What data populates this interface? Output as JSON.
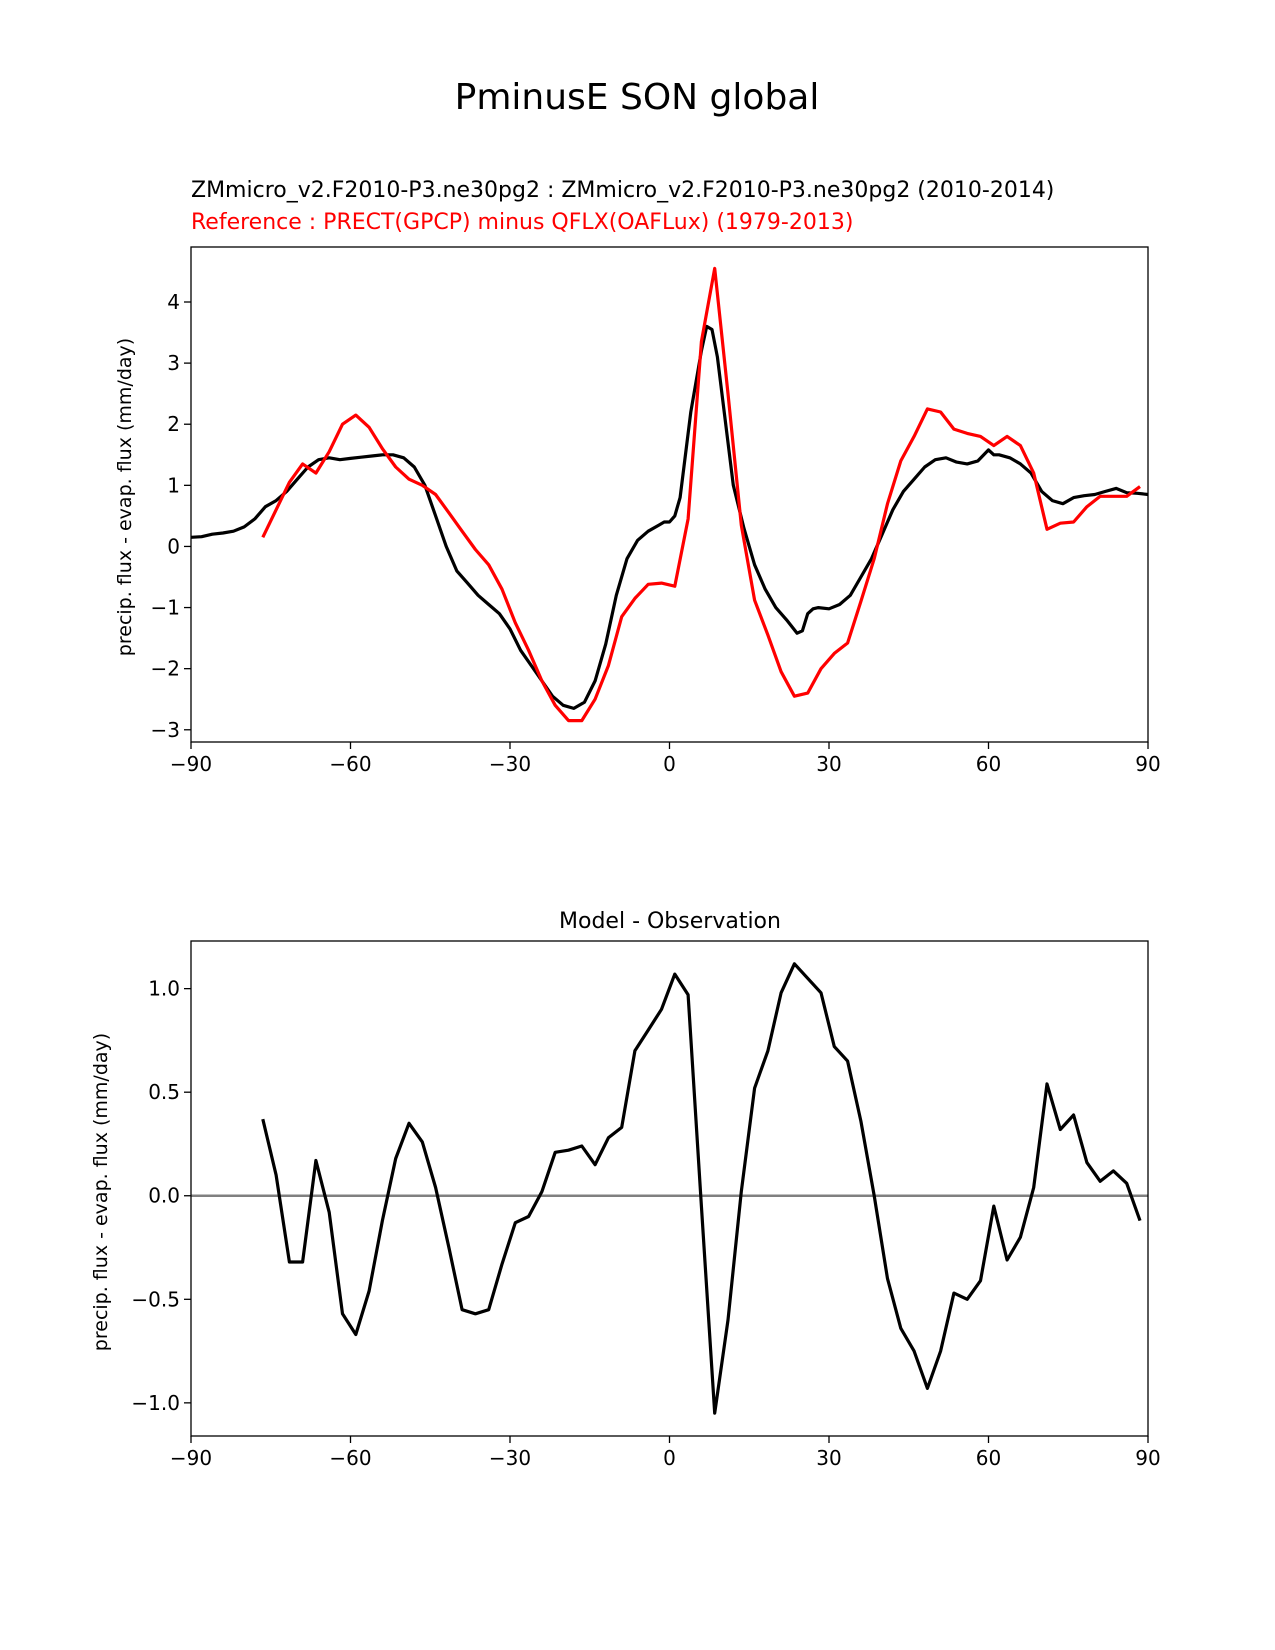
{
  "figure": {
    "suptitle": "PminusE SON global"
  },
  "chart_data": [
    {
      "type": "line",
      "title_test": "ZMmicro_v2.F2010-P3.ne30pg2 : ZMmicro_v2.F2010-P3.ne30pg2 (2010-2014)",
      "title_ref": "Reference : PRECT(GPCP) minus QFLX(OAFLux) (1979-2013)",
      "xlabel": "",
      "ylabel": "precip. flux - evap. flux (mm/day)",
      "xlim": [
        -90,
        90
      ],
      "ylim": [
        -3.2,
        4.9
      ],
      "xticks": [
        -90,
        -60,
        -30,
        0,
        30,
        60,
        90
      ],
      "xtick_labels": [
        "−90",
        "−60",
        "−30",
        "0",
        "30",
        "60",
        "90"
      ],
      "yticks": [
        -3,
        -2,
        -1,
        0,
        1,
        2,
        3,
        4
      ],
      "ytick_labels": [
        "−3",
        "−2",
        "−1",
        "0",
        "1",
        "2",
        "3",
        "4"
      ],
      "series": [
        {
          "name": "test",
          "color": "#000000",
          "x": [
            -90,
            -88,
            -86,
            -84,
            -82,
            -80,
            -78,
            -76,
            -74,
            -72,
            -70,
            -68,
            -66,
            -64,
            -62,
            -60,
            -58,
            -56,
            -54,
            -52,
            -50,
            -48,
            -46,
            -44,
            -42,
            -40,
            -38,
            -36,
            -34,
            -32,
            -30,
            -28,
            -26,
            -24,
            -22,
            -20,
            -18,
            -16,
            -14,
            -12,
            -10,
            -8,
            -6,
            -4,
            -2,
            -1,
            0,
            1,
            2,
            4,
            6,
            7,
            8,
            9,
            10,
            12,
            14,
            16,
            18,
            20,
            22,
            24,
            25,
            26,
            27,
            28,
            30,
            32,
            34,
            36,
            38,
            40,
            42,
            44,
            46,
            48,
            50,
            52,
            54,
            56,
            58,
            60,
            61,
            62,
            64,
            66,
            68,
            70,
            72,
            74,
            76,
            78,
            80,
            82,
            84,
            86,
            88,
            90
          ],
          "y": [
            0.15,
            0.16,
            0.2,
            0.22,
            0.25,
            0.32,
            0.45,
            0.65,
            0.75,
            0.9,
            1.1,
            1.3,
            1.42,
            1.45,
            1.42,
            1.44,
            1.46,
            1.48,
            1.5,
            1.5,
            1.45,
            1.3,
            1.0,
            0.5,
            0.0,
            -0.4,
            -0.6,
            -0.8,
            -0.95,
            -1.1,
            -1.35,
            -1.7,
            -1.95,
            -2.2,
            -2.45,
            -2.6,
            -2.65,
            -2.55,
            -2.2,
            -1.6,
            -0.8,
            -0.2,
            0.1,
            0.25,
            0.35,
            0.4,
            0.4,
            0.5,
            0.8,
            2.2,
            3.2,
            3.6,
            3.55,
            3.1,
            2.4,
            1.0,
            0.3,
            -0.3,
            -0.7,
            -1.0,
            -1.2,
            -1.42,
            -1.38,
            -1.1,
            -1.02,
            -1.0,
            -1.02,
            -0.95,
            -0.8,
            -0.5,
            -0.2,
            0.2,
            0.6,
            0.9,
            1.1,
            1.3,
            1.42,
            1.45,
            1.38,
            1.35,
            1.4,
            1.58,
            1.5,
            1.5,
            1.45,
            1.35,
            1.2,
            0.9,
            0.75,
            0.7,
            0.8,
            0.83,
            0.85,
            0.9,
            0.95,
            0.88,
            0.87,
            0.85
          ]
        },
        {
          "name": "reference",
          "color": "#ff0000",
          "x": [
            -76.5,
            -71.5,
            -69,
            -66.5,
            -64,
            -61.5,
            -59,
            -56.5,
            -54,
            -51.5,
            -49,
            -46.5,
            -44,
            -41.5,
            -39,
            -36.5,
            -34,
            -31.5,
            -29,
            -26.5,
            -24,
            -21.5,
            -19,
            -16.5,
            -14,
            -11.5,
            -9,
            -6.5,
            -4,
            -1.5,
            1,
            3.5,
            6,
            8.5,
            11,
            13.5,
            16,
            18.5,
            21,
            23.5,
            26,
            28.5,
            31,
            33.5,
            36,
            38.5,
            41,
            43.5,
            46,
            48.5,
            51,
            53.5,
            56,
            58.5,
            61,
            63.5,
            66,
            68.5,
            71,
            73.5,
            76,
            78.5,
            81,
            83.5,
            86,
            88.5
          ],
          "y": [
            0.15,
            1.05,
            1.35,
            1.2,
            1.55,
            2.0,
            2.15,
            1.95,
            1.6,
            1.3,
            1.1,
            1.0,
            0.85,
            0.55,
            0.25,
            -0.05,
            -0.3,
            -0.7,
            -1.25,
            -1.7,
            -2.2,
            -2.6,
            -2.85,
            -2.85,
            -2.5,
            -1.95,
            -1.15,
            -0.85,
            -0.62,
            -0.6,
            -0.65,
            0.45,
            3.35,
            4.55,
            2.5,
            0.35,
            -0.88,
            -1.45,
            -2.05,
            -2.45,
            -2.4,
            -2.0,
            -1.75,
            -1.58,
            -0.9,
            -0.2,
            0.7,
            1.4,
            1.8,
            2.25,
            2.2,
            1.92,
            1.85,
            1.8,
            1.65,
            1.8,
            1.65,
            1.2,
            0.28,
            0.38,
            0.4,
            0.65,
            0.82,
            0.82,
            0.82,
            0.98
          ]
        }
      ]
    },
    {
      "type": "line",
      "title": "Model - Observation",
      "xlabel": "",
      "ylabel": "precip. flux - evap. flux (mm/day)",
      "xlim": [
        -90,
        90
      ],
      "ylim": [
        -1.16,
        1.23
      ],
      "xticks": [
        -90,
        -60,
        -30,
        0,
        30,
        60,
        90
      ],
      "xtick_labels": [
        "−90",
        "−60",
        "−30",
        "0",
        "30",
        "60",
        "90"
      ],
      "yticks": [
        -1.0,
        -0.5,
        0.0,
        0.5,
        1.0
      ],
      "ytick_labels": [
        "−1.0",
        "−0.5",
        "0.0",
        "0.5",
        "1.0"
      ],
      "zero_line_color": "#808080",
      "series": [
        {
          "name": "difference",
          "color": "#000000",
          "x": [
            -76.5,
            -74,
            -71.5,
            -69,
            -66.5,
            -64,
            -61.5,
            -59,
            -56.5,
            -54,
            -51.5,
            -49,
            -46.5,
            -44,
            -41.5,
            -39,
            -36.5,
            -34,
            -31.5,
            -29,
            -26.5,
            -24,
            -21.5,
            -19,
            -16.5,
            -14,
            -11.5,
            -9,
            -6.5,
            -4,
            -1.5,
            1,
            3.5,
            6,
            8.5,
            11,
            13.5,
            16,
            18.5,
            21,
            23.5,
            26,
            28.5,
            31,
            33.5,
            36,
            38.5,
            41,
            43.5,
            46,
            48.5,
            51,
            53.5,
            56,
            58.5,
            61,
            63.5,
            66,
            68.5,
            71,
            73.5,
            76,
            78.5,
            81,
            83.5,
            86,
            88.5
          ],
          "y": [
            0.37,
            0.1,
            -0.32,
            -0.32,
            0.17,
            -0.08,
            -0.57,
            -0.67,
            -0.46,
            -0.12,
            0.18,
            0.35,
            0.26,
            0.04,
            -0.25,
            -0.55,
            -0.57,
            -0.55,
            -0.33,
            -0.13,
            -0.1,
            0.02,
            0.21,
            0.22,
            0.24,
            0.15,
            0.28,
            0.33,
            0.7,
            0.8,
            0.9,
            1.07,
            0.97,
            -0.05,
            -1.05,
            -0.6,
            0.02,
            0.52,
            0.7,
            0.98,
            1.12,
            1.05,
            0.98,
            0.72,
            0.65,
            0.36,
            0.0,
            -0.4,
            -0.64,
            -0.75,
            -0.93,
            -0.75,
            -0.47,
            -0.5,
            -0.41,
            -0.05,
            -0.31,
            -0.2,
            0.04,
            0.54,
            0.32,
            0.39,
            0.16,
            0.07,
            0.12,
            0.06,
            -0.12
          ]
        }
      ]
    }
  ]
}
